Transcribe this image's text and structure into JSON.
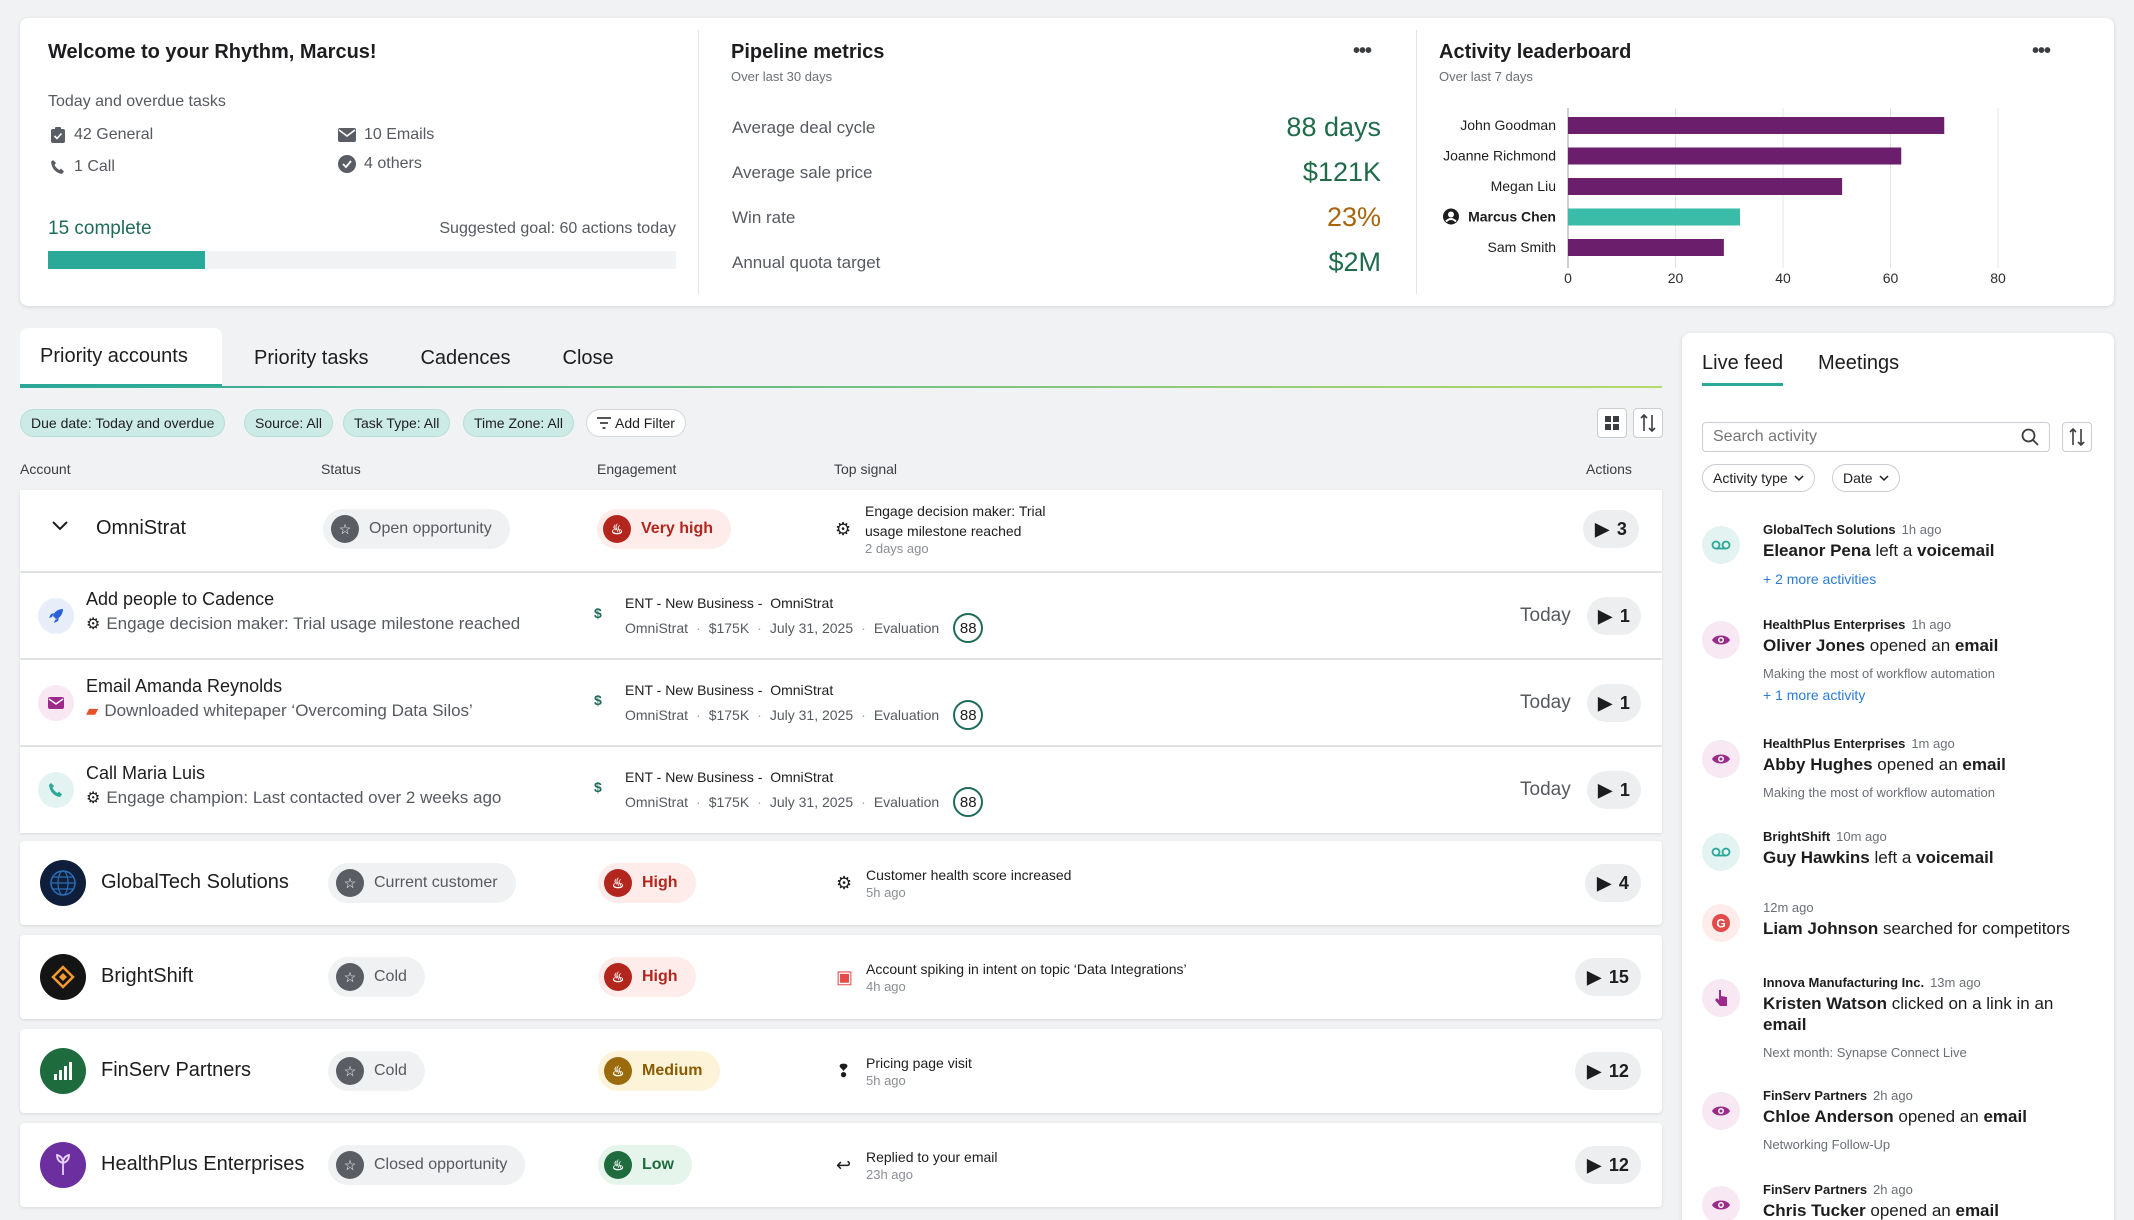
{
  "colors": {
    "accent": "#2aa898",
    "purple": "#6b1e6b",
    "highlight": "#3bbca9",
    "green_value": "#1f6b4a",
    "orange_value": "#a8650c"
  },
  "tasks_card": {
    "title": "Welcome to your Rhythm, Marcus!",
    "section": "Today and overdue tasks",
    "general": "42 General",
    "emails": "10 Emails",
    "call": "1 Call",
    "others": "4 others",
    "complete": "15 complete",
    "goal": "Suggested goal: 60 actions today",
    "progress": 0.25
  },
  "pipeline": {
    "title": "Pipeline metrics",
    "subtitle": "Over last 30 days",
    "metrics": [
      {
        "label": "Average deal cycle",
        "value": "88 days",
        "color": "#1f6b4a"
      },
      {
        "label": "Average sale price",
        "value": "$121K",
        "color": "#1f6b4a"
      },
      {
        "label": "Win rate",
        "value": "23%",
        "color": "#a8650c"
      },
      {
        "label": "Annual quota target",
        "value": "$2M",
        "color": "#1f6b4a"
      }
    ]
  },
  "leaderboard": {
    "title": "Activity leaderboard",
    "subtitle": "Over last 7 days"
  },
  "chart_data": {
    "type": "bar",
    "orientation": "horizontal",
    "categories": [
      "John Goodman",
      "Joanne Richmond",
      "Megan Liu",
      "Marcus Chen",
      "Sam Smith"
    ],
    "values": [
      70,
      62,
      51,
      32,
      29
    ],
    "highlight": "Marcus Chen",
    "xlim": [
      0,
      80
    ],
    "xticks": [
      "0",
      "20",
      "40",
      "60",
      "80"
    ],
    "grid": true
  },
  "tabs": [
    "Priority accounts",
    "Priority tasks",
    "Cadences",
    "Close"
  ],
  "filters": [
    "Due date: Today and overdue",
    "Source: All",
    "Task Type: All",
    "Time Zone: All"
  ],
  "add_filter": "Add Filter",
  "columns": {
    "account": "Account",
    "status": "Status",
    "engagement": "Engagement",
    "signal": "Top signal",
    "actions": "Actions"
  },
  "omnistrat": {
    "name": "OmniStrat",
    "status": "Open opportunity",
    "engagement": "Very high",
    "signal": "Engage decision maker: Trial usage milestone reached",
    "signal_line1": "Engage decision maker: Trial",
    "signal_line2": "usage milestone reached",
    "signal_time": "2 days ago",
    "actions": "3"
  },
  "tasks": [
    {
      "title": "Add people to Cadence",
      "sub": "Engage decision maker: Trial usage milestone reached",
      "deal": "ENT - New Business -  OmniStrat",
      "company": "OmniStrat",
      "amount": "$175K",
      "date": "July 31, 2025",
      "stage": "Evaluation",
      "score": "88",
      "due": "Today",
      "count": "1"
    },
    {
      "title": "Email Amanda Reynolds",
      "sub": "Downloaded whitepaper ‘Overcoming Data Silos’",
      "deal": "ENT - New Business -  OmniStrat",
      "company": "OmniStrat",
      "amount": "$175K",
      "date": "July 31, 2025",
      "stage": "Evaluation",
      "score": "88",
      "due": "Today",
      "count": "1"
    },
    {
      "title": "Call Maria Luis",
      "sub": "Engage champion: Last contacted over 2 weeks ago",
      "deal": "ENT - New Business -  OmniStrat",
      "company": "OmniStrat",
      "amount": "$175K",
      "date": "July 31, 2025",
      "stage": "Evaluation",
      "score": "88",
      "due": "Today",
      "count": "1"
    }
  ],
  "accounts": [
    {
      "name": "GlobalTech Solutions",
      "status": "Current customer",
      "engagement": "High",
      "signal": "Customer health score increased",
      "time": "5h ago",
      "actions": "4"
    },
    {
      "name": "BrightShift",
      "status": "Cold",
      "engagement": "High",
      "signal": "Account spiking in intent on topic ‘Data Integrations’",
      "time": "4h ago",
      "actions": "15"
    },
    {
      "name": "FinServ Partners",
      "status": "Cold",
      "engagement": "Medium",
      "signal": "Pricing page visit",
      "time": "5h ago",
      "actions": "12"
    },
    {
      "name": "HealthPlus Enterprises",
      "status": "Closed opportunity",
      "engagement": "Low",
      "signal": "Replied to your email",
      "time": "23h ago",
      "actions": "12"
    }
  ],
  "feed": {
    "tabs": [
      "Live feed",
      "Meetings"
    ],
    "search_placeholder": "Search activity",
    "filters": [
      "Activity type",
      "Date"
    ],
    "items": [
      {
        "company": "GlobalTech Solutions",
        "time": "1h ago",
        "person": "Eleanor Pena",
        "action": " left a ",
        "object": "voicemail",
        "note": "",
        "link": "+ 2 more activities"
      },
      {
        "company": "HealthPlus Enterprises",
        "time": "1h ago",
        "person": "Oliver Jones",
        "action": " opened an ",
        "object": "email",
        "note": "Making the most of workflow automation",
        "link": "+ 1 more activity"
      },
      {
        "company": "HealthPlus Enterprises",
        "time": "1m ago",
        "person": "Abby Hughes",
        "action": " opened an ",
        "object": "email",
        "note": "Making the most of workflow automation",
        "link": ""
      },
      {
        "company": "BrightShift",
        "time": "10m ago",
        "person": "Guy Hawkins",
        "action": " left a ",
        "object": "voicemail",
        "note": "",
        "link": ""
      },
      {
        "company": "",
        "time": "12m ago",
        "person": "Liam Johnson",
        "action": " searched for competitors",
        "object": "",
        "note": "",
        "link": ""
      },
      {
        "company": "Innova Manufacturing Inc.",
        "time": "13m ago",
        "person": "Kristen Watson",
        "action": " clicked on a link in an",
        "object": "email",
        "note": "Next month: Synapse Connect Live",
        "link": ""
      },
      {
        "company": "FinServ Partners",
        "time": "2h ago",
        "person": "Chloe Anderson",
        "action": " opened an ",
        "object": "email",
        "note": "Networking Follow-Up",
        "link": ""
      },
      {
        "company": "FinServ Partners",
        "time": "2h ago",
        "person": "Chris Tucker",
        "action": " opened an ",
        "object": "email",
        "note": "",
        "link": ""
      }
    ]
  }
}
